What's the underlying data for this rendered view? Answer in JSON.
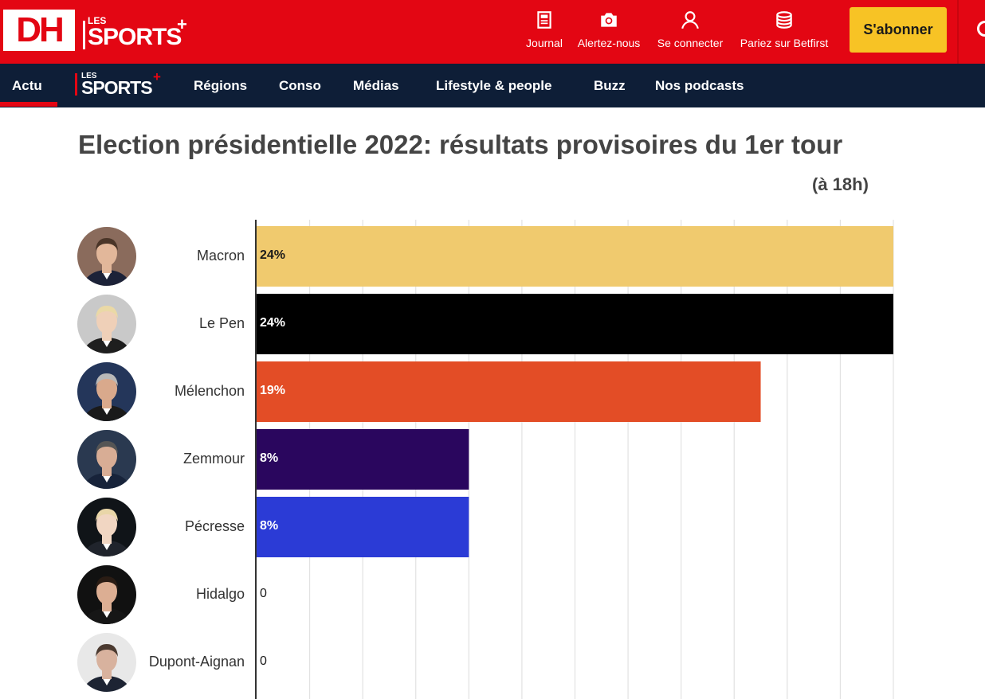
{
  "header": {
    "logo_text": "DH",
    "sports_logo": {
      "les": "LES",
      "word": "SPORTS",
      "plus": "+"
    },
    "actions": [
      {
        "name": "journal",
        "label": "Journal",
        "icon": "newspaper-icon"
      },
      {
        "name": "alertez-nous",
        "label": "Alertez-nous",
        "icon": "camera-icon"
      },
      {
        "name": "se-connecter",
        "label": "Se connecter",
        "icon": "user-icon"
      },
      {
        "name": "betfirst",
        "label": "Pariez sur Betfirst",
        "icon": "coins-icon"
      }
    ],
    "subscribe_label": "S'abonner"
  },
  "nav": {
    "items": [
      {
        "name": "actu",
        "label": "Actu",
        "active": true
      },
      {
        "name": "regions",
        "label": "Régions"
      },
      {
        "name": "conso",
        "label": "Conso"
      },
      {
        "name": "medias",
        "label": "Médias"
      },
      {
        "name": "lifestyle",
        "label": "Lifestyle & people"
      },
      {
        "name": "buzz",
        "label": "Buzz"
      },
      {
        "name": "podcasts",
        "label": "Nos podcasts"
      }
    ],
    "sports_logo": {
      "les": "LES",
      "word": "SPORTS",
      "plus": "+"
    }
  },
  "article": {
    "title": "Election présidentielle 2022: résultats provisoires du 1er tour",
    "subtitle": "(à 18h)"
  },
  "colors": {
    "brand_red": "#e30613",
    "nav_navy": "#0e1e37",
    "subscribe_yellow": "#f7c325"
  },
  "chart_data": {
    "type": "bar",
    "orientation": "horizontal",
    "title": "Election présidentielle 2022: résultats provisoires du 1er tour",
    "subtitle": "(à 18h)",
    "xlim": [
      0,
      24
    ],
    "grid": true,
    "categories": [
      "Macron",
      "Le Pen",
      "Mélenchon",
      "Zemmour",
      "Pécresse",
      "Hidalgo",
      "Dupont-Aignan"
    ],
    "values": [
      24,
      24,
      19,
      8,
      8,
      0,
      0
    ],
    "labels": [
      "24%",
      "24%",
      "19%",
      "8%",
      "8%",
      "0",
      "0"
    ],
    "bar_colors": [
      "#f0ca6e",
      "#000000",
      "#e34d26",
      "#2a065e",
      "#2b3bd6",
      "#2b3bd6",
      "#2b3bd6"
    ],
    "label_colors": [
      "#1a1a1a",
      "#ffffff",
      "#ffffff",
      "#ffffff",
      "#ffffff",
      "#1a1a1a",
      "#1a1a1a"
    ]
  }
}
